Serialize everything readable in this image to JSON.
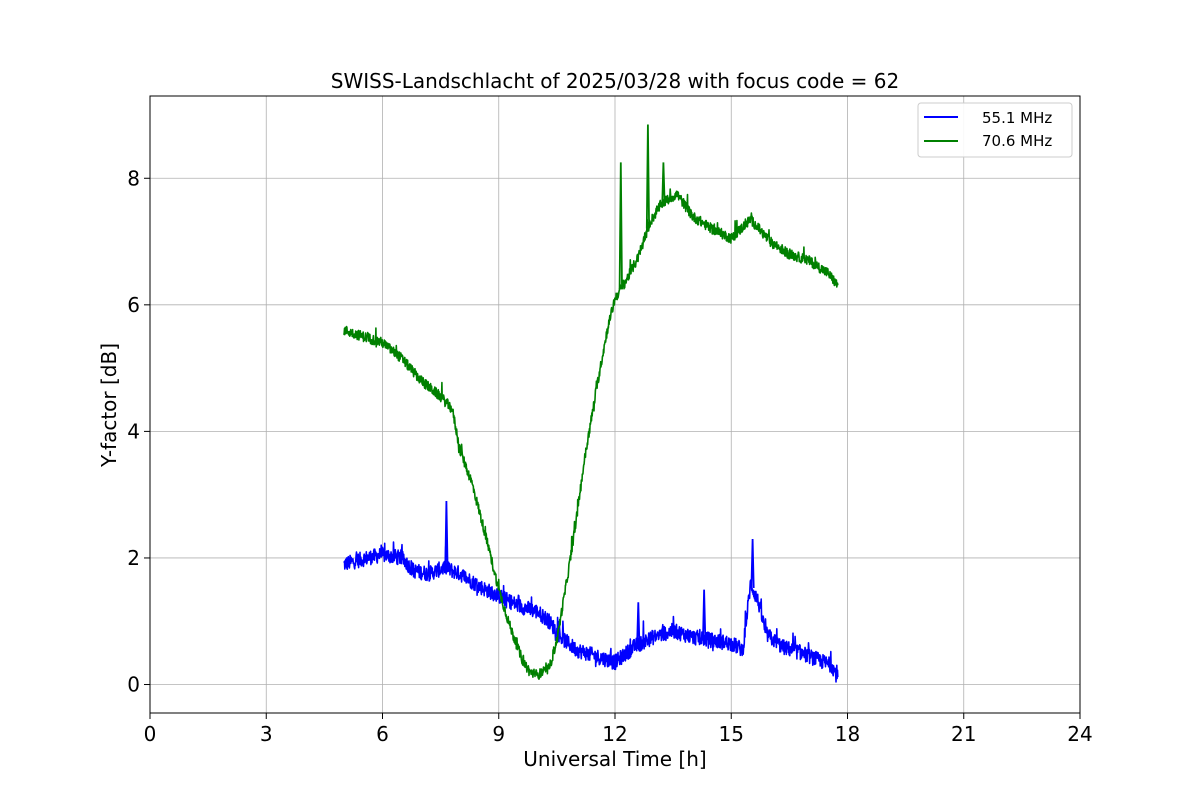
{
  "chart_data": {
    "type": "line",
    "title": "SWISS-Landschlacht of 2025/03/28 with focus code = 62",
    "xlabel": "Universal Time [h]",
    "ylabel": "Y-factor [dB]",
    "xlim": [
      0,
      24
    ],
    "ylim": [
      -0.45,
      9.3
    ],
    "xticks": [
      0,
      3,
      6,
      9,
      12,
      15,
      18,
      21,
      24
    ],
    "yticks": [
      0,
      2,
      4,
      6,
      8
    ],
    "grid": true,
    "legend_position": "top-right",
    "series": [
      {
        "name": "55.1 MHz",
        "color": "#0000ff",
        "noise": 0.12,
        "points": [
          [
            5.0,
            1.9
          ],
          [
            5.3,
            1.95
          ],
          [
            5.6,
            2.0
          ],
          [
            6.0,
            2.05
          ],
          [
            6.5,
            2.0
          ],
          [
            6.8,
            1.8
          ],
          [
            7.2,
            1.75
          ],
          [
            7.6,
            1.85
          ],
          [
            8.0,
            1.75
          ],
          [
            8.5,
            1.55
          ],
          [
            9.0,
            1.4
          ],
          [
            9.5,
            1.25
          ],
          [
            10.0,
            1.15
          ],
          [
            10.3,
            1.0
          ],
          [
            10.6,
            0.75
          ],
          [
            11.0,
            0.55
          ],
          [
            11.5,
            0.45
          ],
          [
            12.0,
            0.35
          ],
          [
            12.5,
            0.6
          ],
          [
            13.0,
            0.75
          ],
          [
            13.5,
            0.85
          ],
          [
            14.0,
            0.75
          ],
          [
            14.5,
            0.7
          ],
          [
            15.0,
            0.65
          ],
          [
            15.3,
            0.55
          ],
          [
            15.5,
            1.6
          ],
          [
            15.7,
            1.3
          ],
          [
            15.9,
            0.8
          ],
          [
            16.3,
            0.6
          ],
          [
            16.8,
            0.5
          ],
          [
            17.2,
            0.4
          ],
          [
            17.6,
            0.3
          ],
          [
            17.75,
            0.1
          ]
        ],
        "spikes": [
          [
            7.65,
            2.9
          ],
          [
            15.55,
            2.3
          ],
          [
            14.3,
            1.5
          ],
          [
            12.6,
            1.3
          ]
        ]
      },
      {
        "name": "70.6 MHz",
        "color": "#008000",
        "noise": 0.08,
        "points": [
          [
            5.0,
            5.6
          ],
          [
            5.5,
            5.5
          ],
          [
            6.0,
            5.4
          ],
          [
            6.5,
            5.15
          ],
          [
            7.0,
            4.8
          ],
          [
            7.5,
            4.55
          ],
          [
            7.8,
            4.35
          ],
          [
            8.0,
            3.7
          ],
          [
            8.3,
            3.2
          ],
          [
            8.6,
            2.5
          ],
          [
            9.0,
            1.5
          ],
          [
            9.3,
            0.9
          ],
          [
            9.6,
            0.4
          ],
          [
            9.8,
            0.2
          ],
          [
            10.0,
            0.15
          ],
          [
            10.3,
            0.25
          ],
          [
            10.5,
            0.7
          ],
          [
            10.8,
            1.8
          ],
          [
            11.0,
            2.6
          ],
          [
            11.2,
            3.5
          ],
          [
            11.5,
            4.6
          ],
          [
            11.8,
            5.6
          ],
          [
            12.0,
            6.1
          ],
          [
            12.3,
            6.4
          ],
          [
            12.6,
            6.75
          ],
          [
            12.9,
            7.3
          ],
          [
            13.2,
            7.6
          ],
          [
            13.6,
            7.75
          ],
          [
            14.0,
            7.4
          ],
          [
            14.5,
            7.2
          ],
          [
            15.0,
            7.05
          ],
          [
            15.5,
            7.35
          ],
          [
            16.0,
            7.0
          ],
          [
            16.5,
            6.8
          ],
          [
            17.0,
            6.7
          ],
          [
            17.5,
            6.5
          ],
          [
            17.75,
            6.3
          ]
        ],
        "spikes": [
          [
            12.15,
            8.25
          ],
          [
            12.85,
            8.85
          ],
          [
            13.25,
            8.25
          ]
        ]
      }
    ]
  }
}
